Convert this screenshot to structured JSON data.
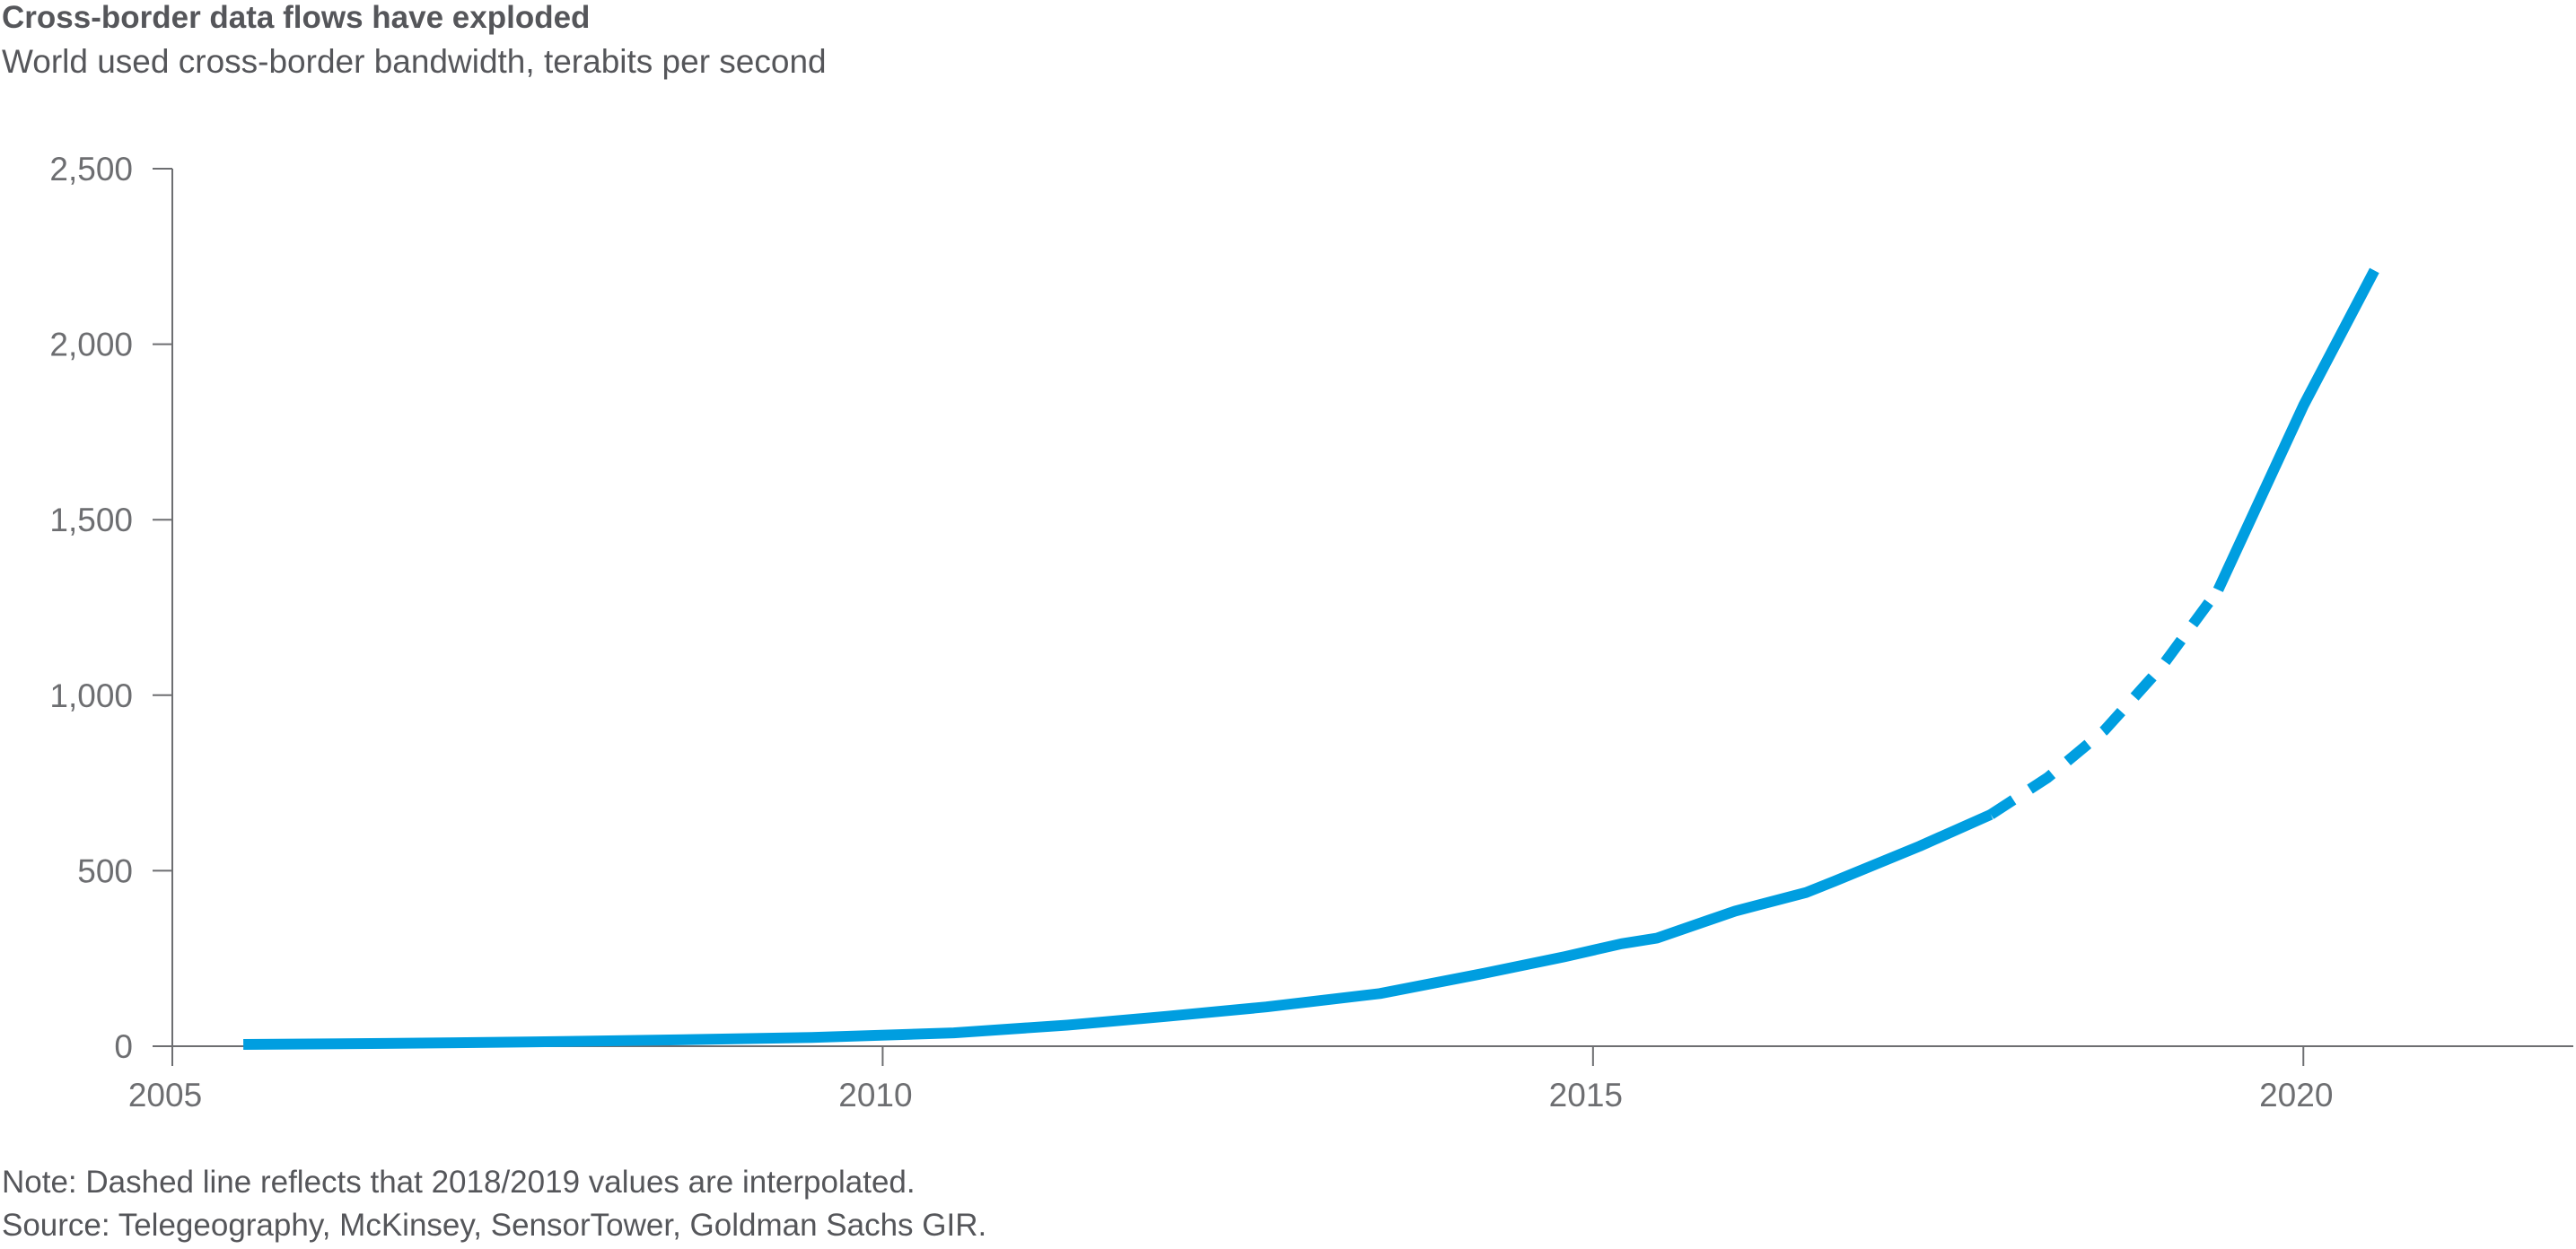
{
  "chart_data": {
    "type": "line",
    "title": "Cross-border data flows have exploded",
    "subtitle": "World used cross-border bandwidth, terabits per second",
    "xlabel": "",
    "ylabel": "",
    "xlim": [
      2005,
      2021.9
    ],
    "ylim": [
      0,
      2500
    ],
    "x_ticks": [
      2005,
      2010,
      2015,
      2020
    ],
    "x_tick_labels": [
      "2005",
      "2010",
      "2015",
      "2020"
    ],
    "y_ticks": [
      0,
      500,
      1000,
      1500,
      2000,
      2500
    ],
    "y_tick_labels": [
      "0",
      "500",
      "1,000",
      "1,500",
      "2,000",
      "2,500"
    ],
    "grid": false,
    "legend": "none",
    "series": [
      {
        "style": "solid",
        "color": "#009ee0",
        "x": [
          2005.5,
          2006.5,
          2007.5,
          2008.5,
          2009.5,
          2010.5,
          2011.3,
          2012.0,
          2012.7,
          2013.5,
          2014.2,
          2014.8,
          2015.2,
          2015.45,
          2016.0,
          2016.5,
          2016.7,
          2017.3,
          2017.8
        ],
        "y": [
          5,
          8,
          12,
          18,
          25,
          38,
          60,
          85,
          112,
          150,
          205,
          255,
          292,
          308,
          385,
          438,
          470,
          570,
          660
        ]
      },
      {
        "style": "dashed",
        "color": "#009ee0",
        "x": [
          2017.8,
          2018.2,
          2018.6,
          2019.0,
          2019.4
        ],
        "y": [
          660,
          765,
          900,
          1080,
          1300
        ]
      },
      {
        "style": "solid",
        "color": "#009ee0",
        "x": [
          2019.4,
          2020.0,
          2020.5
        ],
        "y": [
          1300,
          1825,
          2210
        ]
      }
    ]
  },
  "note": "Note: Dashed line reflects that 2018/2019 values are interpolated.",
  "source": "Source: Telegeography, McKinsey, SensorTower, Goldman Sachs GIR."
}
